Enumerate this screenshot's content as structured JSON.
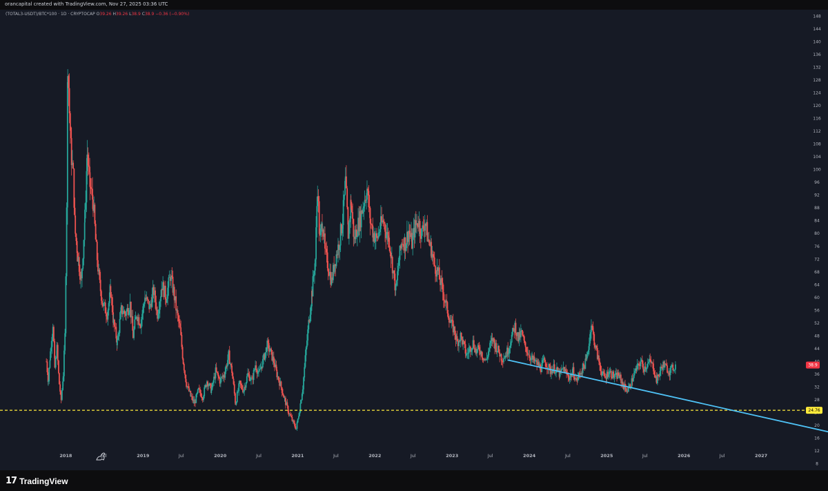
{
  "header": {
    "credit": "orancapital created with TradingView.com, Nov 27, 2025 03:36 UTC"
  },
  "legend": {
    "symbol": "(TOTAL3-USDT)/BTC*100 · 1D · CRYPTOCAP",
    "open_label": "O",
    "open_value": "39.26",
    "high_label": "H",
    "high_value": "39.26",
    "low_label": "L",
    "low_value": "38.9",
    "close_label": "C",
    "close_value": "38.9",
    "change": "−0.36 (−0.90%)"
  },
  "footer": {
    "brand_mark": "17",
    "brand_name": "TradingView"
  },
  "colors": {
    "background": "#161a25",
    "up": "#26a69a",
    "down": "#ef5350",
    "trendline": "#4fc3f7",
    "support_line": "#ffeb3b",
    "price_tag": "#f23645"
  },
  "chart_data": {
    "type": "candlestick",
    "y_axis": {
      "position": "right",
      "ylim": [
        6,
        150
      ],
      "ticks": [
        8,
        12,
        16,
        20,
        24,
        28,
        32,
        36,
        40,
        44,
        48,
        52,
        56,
        60,
        64,
        68,
        72,
        76,
        80,
        84,
        88,
        92,
        96,
        100,
        104,
        108,
        112,
        116,
        120,
        124,
        128,
        132,
        136,
        140,
        144,
        148
      ]
    },
    "x_axis": {
      "range": [
        "2017-09-01",
        "2028-01-01"
      ],
      "ticks": [
        {
          "label": "2018",
          "date": "2018-01-01",
          "major": true
        },
        {
          "label": "Jul",
          "date": "2018-07-01",
          "major": false
        },
        {
          "label": "2019",
          "date": "2019-01-01",
          "major": true
        },
        {
          "label": "Jul",
          "date": "2019-07-01",
          "major": false
        },
        {
          "label": "2020",
          "date": "2020-01-01",
          "major": true
        },
        {
          "label": "Jul",
          "date": "2020-07-01",
          "major": false
        },
        {
          "label": "2021",
          "date": "2021-01-01",
          "major": true
        },
        {
          "label": "Jul",
          "date": "2021-07-01",
          "major": false
        },
        {
          "label": "2022",
          "date": "2022-01-01",
          "major": true
        },
        {
          "label": "Jul",
          "date": "2022-07-01",
          "major": false
        },
        {
          "label": "2023",
          "date": "2023-01-01",
          "major": true
        },
        {
          "label": "Jul",
          "date": "2023-07-01",
          "major": false
        },
        {
          "label": "2024",
          "date": "2024-01-01",
          "major": true
        },
        {
          "label": "Jul",
          "date": "2024-07-01",
          "major": false
        },
        {
          "label": "2025",
          "date": "2025-01-01",
          "major": true
        },
        {
          "label": "Jul",
          "date": "2025-07-01",
          "major": false
        },
        {
          "label": "2026",
          "date": "2026-01-01",
          "major": true
        },
        {
          "label": "Jul",
          "date": "2026-07-01",
          "major": false
        },
        {
          "label": "2027",
          "date": "2027-01-01",
          "major": true
        }
      ]
    },
    "series_points": [
      [
        "2017-10-01",
        40
      ],
      [
        "2017-10-10",
        34
      ],
      [
        "2017-10-20",
        43
      ],
      [
        "2017-11-01",
        52
      ],
      [
        "2017-11-10",
        38
      ],
      [
        "2017-11-20",
        44
      ],
      [
        "2017-12-01",
        33
      ],
      [
        "2017-12-10",
        28
      ],
      [
        "2017-12-20",
        36
      ],
      [
        "2017-12-28",
        48
      ],
      [
        "2018-01-05",
        90
      ],
      [
        "2018-01-10",
        134
      ],
      [
        "2018-01-18",
        118
      ],
      [
        "2018-01-28",
        104
      ],
      [
        "2018-02-05",
        98
      ],
      [
        "2018-02-15",
        80
      ],
      [
        "2018-03-01",
        72
      ],
      [
        "2018-03-15",
        65
      ],
      [
        "2018-04-01",
        85
      ],
      [
        "2018-04-12",
        105
      ],
      [
        "2018-04-25",
        95
      ],
      [
        "2018-05-10",
        90
      ],
      [
        "2018-05-25",
        75
      ],
      [
        "2018-06-10",
        64
      ],
      [
        "2018-06-25",
        58
      ],
      [
        "2018-07-15",
        55
      ],
      [
        "2018-08-01",
        62
      ],
      [
        "2018-08-15",
        52
      ],
      [
        "2018-09-01",
        46
      ],
      [
        "2018-09-20",
        56
      ],
      [
        "2018-10-10",
        55
      ],
      [
        "2018-11-01",
        58
      ],
      [
        "2018-11-15",
        48
      ],
      [
        "2018-12-01",
        55
      ],
      [
        "2018-12-20",
        52
      ],
      [
        "2019-01-10",
        60
      ],
      [
        "2019-02-01",
        57
      ],
      [
        "2019-02-20",
        62
      ],
      [
        "2019-03-10",
        55
      ],
      [
        "2019-04-01",
        64
      ],
      [
        "2019-04-20",
        60
      ],
      [
        "2019-05-10",
        67
      ],
      [
        "2019-05-25",
        62
      ],
      [
        "2019-06-10",
        55
      ],
      [
        "2019-06-25",
        50
      ],
      [
        "2019-07-10",
        40
      ],
      [
        "2019-07-25",
        33
      ],
      [
        "2019-08-15",
        29
      ],
      [
        "2019-09-01",
        27
      ],
      [
        "2019-09-20",
        31
      ],
      [
        "2019-10-10",
        29
      ],
      [
        "2019-10-30",
        34
      ],
      [
        "2019-11-20",
        31
      ],
      [
        "2019-12-10",
        37
      ],
      [
        "2019-12-30",
        34
      ],
      [
        "2020-01-20",
        36
      ],
      [
        "2020-02-10",
        42
      ],
      [
        "2020-02-25",
        37
      ],
      [
        "2020-03-13",
        27
      ],
      [
        "2020-04-01",
        33
      ],
      [
        "2020-04-20",
        31
      ],
      [
        "2020-05-10",
        36
      ],
      [
        "2020-05-30",
        34
      ],
      [
        "2020-06-15",
        39
      ],
      [
        "2020-07-01",
        36
      ],
      [
        "2020-07-20",
        40
      ],
      [
        "2020-08-10",
        45
      ],
      [
        "2020-08-25",
        43
      ],
      [
        "2020-09-10",
        40
      ],
      [
        "2020-09-25",
        36
      ],
      [
        "2020-10-15",
        32
      ],
      [
        "2020-11-01",
        28
      ],
      [
        "2020-11-20",
        24
      ],
      [
        "2020-12-10",
        21
      ],
      [
        "2020-12-25",
        19
      ],
      [
        "2021-01-10",
        25
      ],
      [
        "2021-01-25",
        32
      ],
      [
        "2021-02-10",
        44
      ],
      [
        "2021-02-25",
        54
      ],
      [
        "2021-03-10",
        62
      ],
      [
        "2021-03-25",
        72
      ],
      [
        "2021-04-05",
        95
      ],
      [
        "2021-04-15",
        78
      ],
      [
        "2021-04-28",
        84
      ],
      [
        "2021-05-10",
        74
      ],
      [
        "2021-05-25",
        70
      ],
      [
        "2021-06-10",
        65
      ],
      [
        "2021-06-25",
        71
      ],
      [
        "2021-07-15",
        77
      ],
      [
        "2021-08-01",
        84
      ],
      [
        "2021-08-15",
        96
      ],
      [
        "2021-08-28",
        80
      ],
      [
        "2021-09-10",
        90
      ],
      [
        "2021-09-25",
        78
      ],
      [
        "2021-10-10",
        82
      ],
      [
        "2021-10-25",
        85
      ],
      [
        "2021-11-10",
        90
      ],
      [
        "2021-11-25",
        94
      ],
      [
        "2021-12-10",
        84
      ],
      [
        "2021-12-25",
        80
      ],
      [
        "2022-01-10",
        78
      ],
      [
        "2022-01-25",
        82
      ],
      [
        "2022-02-10",
        84
      ],
      [
        "2022-02-25",
        80
      ],
      [
        "2022-03-10",
        78
      ],
      [
        "2022-03-25",
        70
      ],
      [
        "2022-04-10",
        62
      ],
      [
        "2022-04-25",
        72
      ],
      [
        "2022-05-10",
        78
      ],
      [
        "2022-05-25",
        77
      ],
      [
        "2022-06-10",
        81
      ],
      [
        "2022-06-25",
        77
      ],
      [
        "2022-07-10",
        82
      ],
      [
        "2022-07-25",
        84
      ],
      [
        "2022-08-10",
        80
      ],
      [
        "2022-08-25",
        84
      ],
      [
        "2022-09-10",
        78
      ],
      [
        "2022-09-25",
        75
      ],
      [
        "2022-10-10",
        70
      ],
      [
        "2022-10-25",
        68
      ],
      [
        "2022-11-10",
        64
      ],
      [
        "2022-11-25",
        60
      ],
      [
        "2022-12-10",
        56
      ],
      [
        "2022-12-25",
        52
      ],
      [
        "2023-01-10",
        50
      ],
      [
        "2023-01-25",
        46
      ],
      [
        "2023-02-10",
        48
      ],
      [
        "2023-02-25",
        45
      ],
      [
        "2023-03-10",
        42
      ],
      [
        "2023-03-25",
        44
      ],
      [
        "2023-04-10",
        46
      ],
      [
        "2023-04-25",
        43
      ],
      [
        "2023-05-10",
        44
      ],
      [
        "2023-05-25",
        42
      ],
      [
        "2023-06-10",
        40
      ],
      [
        "2023-06-25",
        44
      ],
      [
        "2023-07-10",
        47
      ],
      [
        "2023-07-25",
        45
      ],
      [
        "2023-08-10",
        43
      ],
      [
        "2023-08-25",
        41
      ],
      [
        "2023-09-10",
        42
      ],
      [
        "2023-09-25",
        44
      ],
      [
        "2023-10-10",
        48
      ],
      [
        "2023-10-25",
        51
      ],
      [
        "2023-11-10",
        47
      ],
      [
        "2023-11-25",
        49
      ],
      [
        "2023-12-10",
        45
      ],
      [
        "2023-12-25",
        43
      ],
      [
        "2024-01-10",
        41
      ],
      [
        "2024-01-25",
        40
      ],
      [
        "2024-02-10",
        39
      ],
      [
        "2024-02-25",
        38
      ],
      [
        "2024-03-10",
        40
      ],
      [
        "2024-03-25",
        39
      ],
      [
        "2024-04-10",
        37
      ],
      [
        "2024-04-25",
        38
      ],
      [
        "2024-05-10",
        37
      ],
      [
        "2024-05-25",
        36
      ],
      [
        "2024-06-10",
        38
      ],
      [
        "2024-06-25",
        36
      ],
      [
        "2024-07-10",
        35
      ],
      [
        "2024-07-25",
        37
      ],
      [
        "2024-08-10",
        34
      ],
      [
        "2024-08-25",
        36
      ],
      [
        "2024-09-10",
        38
      ],
      [
        "2024-09-25",
        40
      ],
      [
        "2024-10-10",
        46
      ],
      [
        "2024-10-20",
        52
      ],
      [
        "2024-10-30",
        48
      ],
      [
        "2024-11-10",
        44
      ],
      [
        "2024-11-25",
        40
      ],
      [
        "2024-12-10",
        36
      ],
      [
        "2024-12-25",
        35
      ],
      [
        "2025-01-10",
        37
      ],
      [
        "2025-01-25",
        36
      ],
      [
        "2025-02-10",
        35
      ],
      [
        "2025-02-25",
        36
      ],
      [
        "2025-03-10",
        34
      ],
      [
        "2025-03-25",
        32
      ],
      [
        "2025-04-10",
        31
      ],
      [
        "2025-04-25",
        33
      ],
      [
        "2025-05-10",
        36
      ],
      [
        "2025-05-25",
        38
      ],
      [
        "2025-06-10",
        40
      ],
      [
        "2025-06-25",
        38
      ],
      [
        "2025-07-10",
        39
      ],
      [
        "2025-07-25",
        40
      ],
      [
        "2025-08-10",
        38
      ],
      [
        "2025-08-25",
        34
      ],
      [
        "2025-09-10",
        37
      ],
      [
        "2025-09-25",
        39
      ],
      [
        "2025-10-10",
        38
      ],
      [
        "2025-10-25",
        37
      ],
      [
        "2025-11-10",
        38
      ],
      [
        "2025-11-26",
        38.9
      ]
    ],
    "last_price": {
      "value": 38.9,
      "label": "38.9"
    },
    "horizontal_line": {
      "value": 24.76,
      "label": "24.76",
      "style": "dashed"
    },
    "trendline": {
      "start": [
        "2023-09-20",
        40.5
      ],
      "end": [
        "2027-12-20",
        17.5
      ]
    }
  }
}
